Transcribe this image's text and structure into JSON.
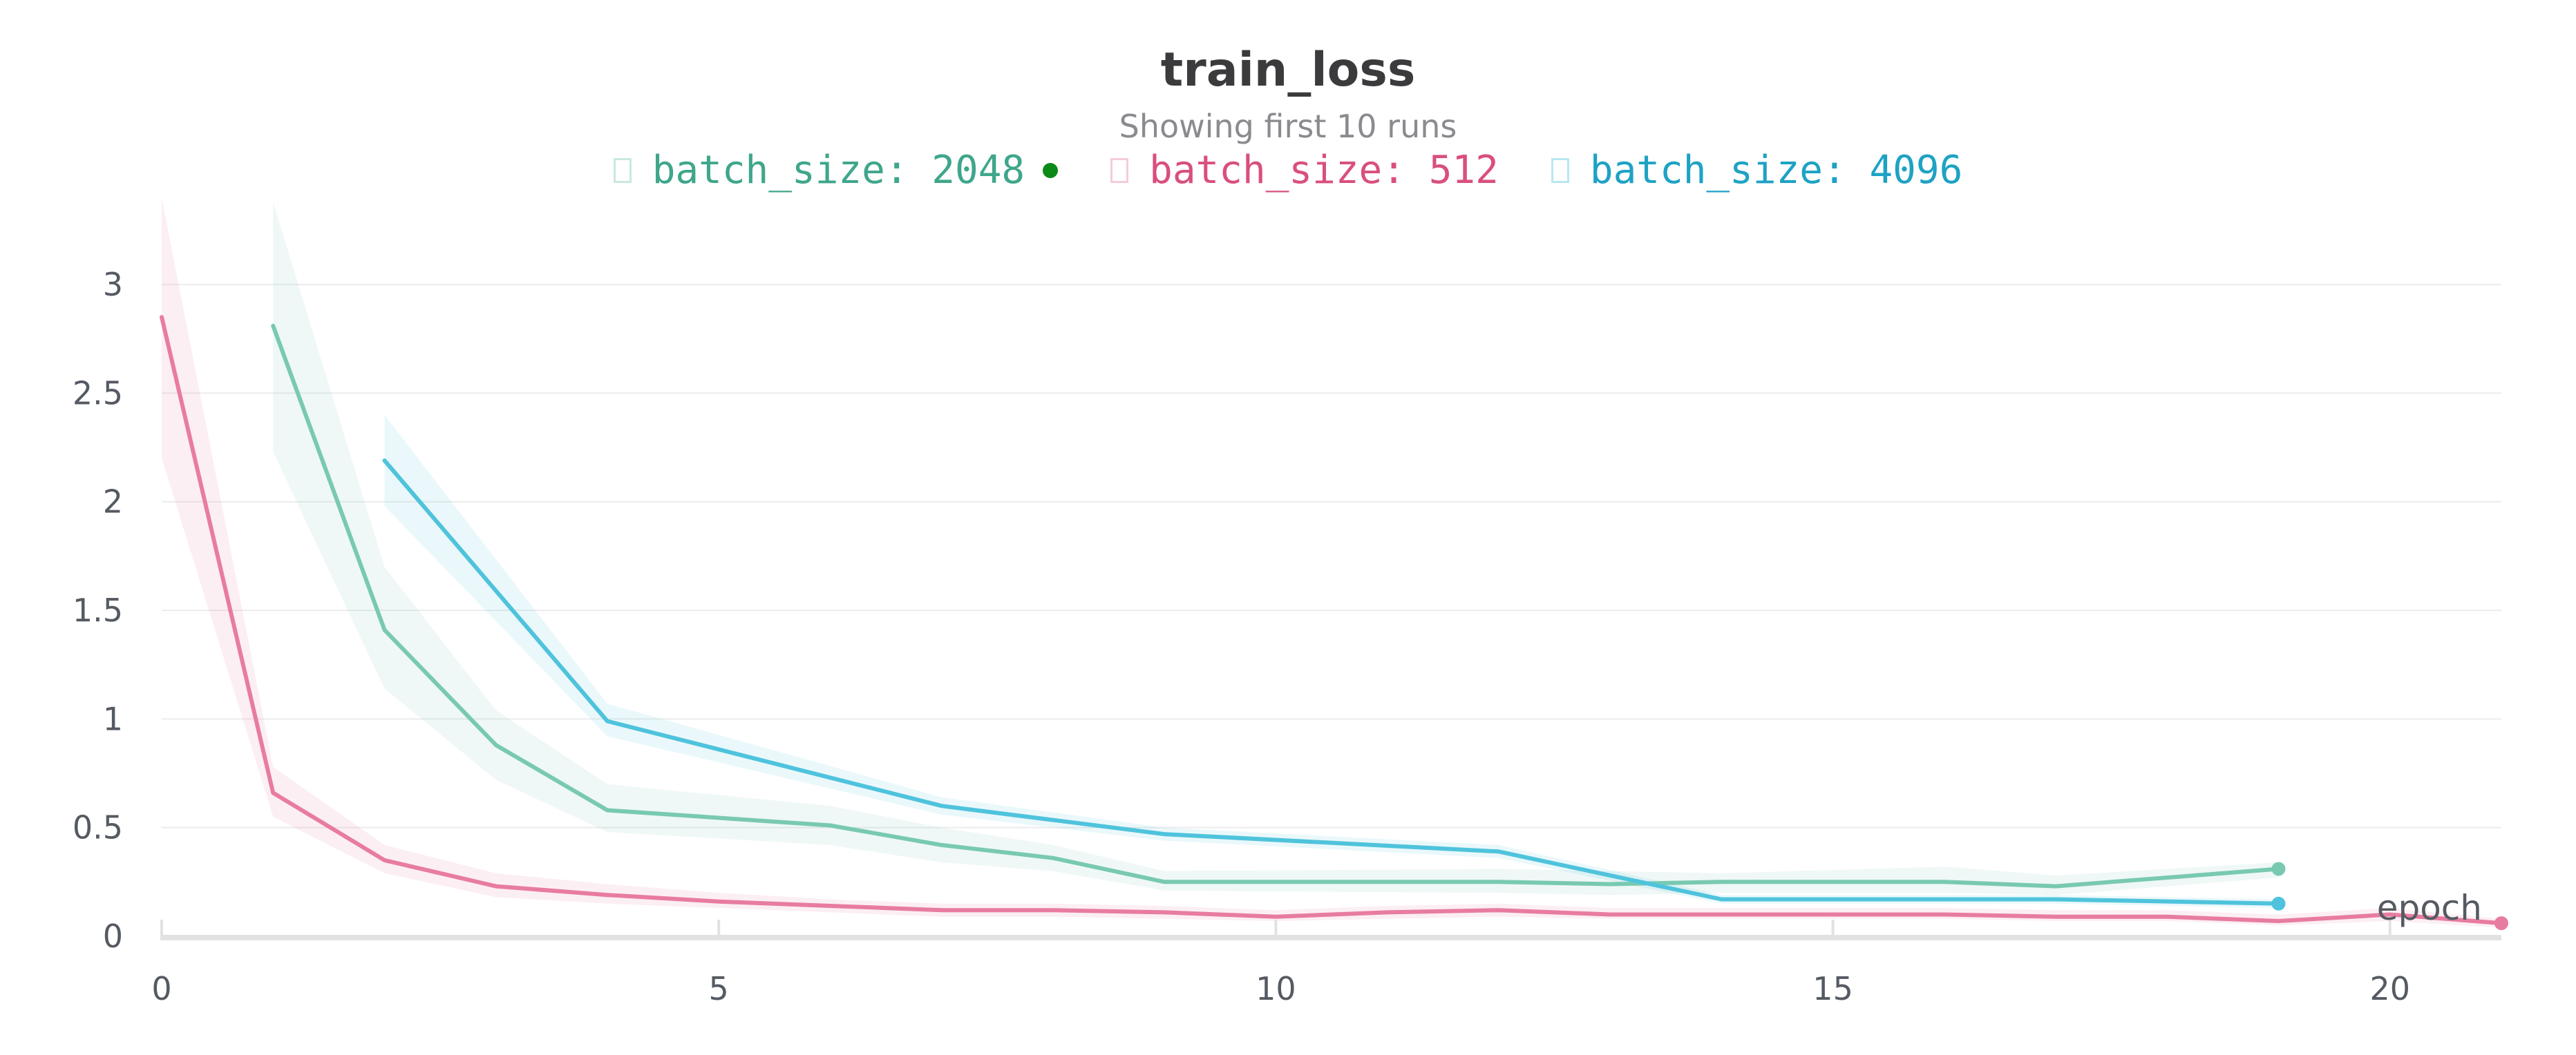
{
  "chart_data": {
    "type": "line",
    "title": "train_loss",
    "subtitle": "Showing first 10 runs",
    "xlabel": "epoch",
    "ylabel": "",
    "xlim": [
      0,
      21
    ],
    "ylim": [
      0,
      3.35
    ],
    "xticks": [
      0,
      5,
      10,
      15,
      20
    ],
    "yticks": [
      0,
      0.5,
      1,
      1.5,
      2,
      2.5,
      3
    ],
    "ytick_labels": [
      "0",
      "0.5",
      "1",
      "1.5",
      "2",
      "2.5",
      "3"
    ],
    "grid": true,
    "legend_position": "top",
    "series": [
      {
        "name": "batch_size: 2048",
        "color": "#79c9b2",
        "label_color": "#3fa68b",
        "marker": "green-dot",
        "x": [
          1,
          2,
          3,
          4,
          6,
          7,
          8,
          9,
          12,
          13,
          14,
          16,
          17,
          19
        ],
        "y": [
          2.81,
          1.41,
          0.88,
          0.58,
          0.51,
          0.42,
          0.36,
          0.25,
          0.25,
          0.24,
          0.25,
          0.25,
          0.23,
          0.31
        ],
        "band_upper": [
          3.38,
          1.7,
          1.04,
          0.7,
          0.6,
          0.5,
          0.42,
          0.3,
          0.31,
          0.3,
          0.29,
          0.32,
          0.28,
          0.34
        ],
        "band_lower": [
          2.23,
          1.14,
          0.72,
          0.48,
          0.42,
          0.34,
          0.3,
          0.21,
          0.2,
          0.19,
          0.2,
          0.2,
          0.19,
          0.27
        ]
      },
      {
        "name": "batch_size: 512",
        "color": "#e87ca0",
        "label_color": "#d94f7f",
        "x": [
          0,
          1,
          2,
          3,
          4,
          5,
          6,
          7,
          8,
          9,
          10,
          11,
          12,
          13,
          14,
          15,
          16,
          17,
          18,
          19,
          20,
          21
        ],
        "y": [
          2.85,
          0.66,
          0.35,
          0.23,
          0.19,
          0.16,
          0.14,
          0.12,
          0.12,
          0.11,
          0.09,
          0.11,
          0.12,
          0.1,
          0.1,
          0.1,
          0.1,
          0.09,
          0.09,
          0.07,
          0.1,
          0.06
        ],
        "band_upper": [
          3.4,
          0.78,
          0.42,
          0.29,
          0.24,
          0.2,
          0.17,
          0.15,
          0.15,
          0.14,
          0.12,
          0.14,
          0.15,
          0.13,
          0.13,
          0.13,
          0.13,
          0.12,
          0.12,
          0.1,
          0.13,
          0.08
        ],
        "band_lower": [
          2.2,
          0.55,
          0.29,
          0.18,
          0.15,
          0.13,
          0.11,
          0.09,
          0.09,
          0.08,
          0.07,
          0.08,
          0.09,
          0.08,
          0.08,
          0.08,
          0.08,
          0.07,
          0.07,
          0.05,
          0.07,
          0.04
        ]
      },
      {
        "name": "batch_size: 4096",
        "color": "#4fc3dc",
        "label_color": "#1ea2c4",
        "x": [
          2,
          4,
          7,
          9,
          12,
          14,
          17,
          19
        ],
        "y": [
          2.19,
          0.99,
          0.6,
          0.47,
          0.39,
          0.17,
          0.17,
          0.15
        ],
        "band_upper": [
          2.4,
          1.07,
          0.64,
          0.5,
          0.42,
          0.19,
          0.19,
          0.17
        ],
        "band_lower": [
          1.98,
          0.92,
          0.56,
          0.44,
          0.36,
          0.15,
          0.15,
          0.13
        ]
      }
    ]
  }
}
